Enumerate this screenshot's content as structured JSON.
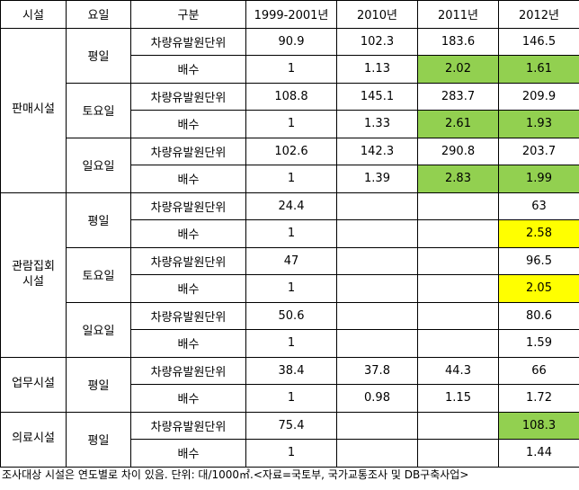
{
  "headers": [
    "시설",
    "요일",
    "구분",
    "1999-2001년",
    "2010년",
    "2011년",
    "2012년"
  ],
  "labels": {
    "unit": "차량유발원단위",
    "ratio": "배수"
  },
  "facilities": {
    "retail": "판매시설",
    "tourism_line1": "관람집회",
    "tourism_line2": "시설",
    "office": "업무시설",
    "medical": "의료시설"
  },
  "days": {
    "weekday": "평일",
    "saturday": "토요일",
    "sunday": "일요일"
  },
  "rows": {
    "retail_weekday_unit": [
      "90.9",
      "102.3",
      "183.6",
      "146.5"
    ],
    "retail_weekday_ratio": [
      "1",
      "1.13",
      "2.02",
      "1.61"
    ],
    "retail_sat_unit": [
      "108.8",
      "145.1",
      "283.7",
      "209.9"
    ],
    "retail_sat_ratio": [
      "1",
      "1.33",
      "2.61",
      "1.93"
    ],
    "retail_sun_unit": [
      "102.6",
      "142.3",
      "290.8",
      "203.7"
    ],
    "retail_sun_ratio": [
      "1",
      "1.39",
      "2.83",
      "1.99"
    ],
    "tour_weekday_unit": [
      "24.4",
      "",
      "",
      "63"
    ],
    "tour_weekday_ratio": [
      "1",
      "",
      "",
      "2.58"
    ],
    "tour_sat_unit": [
      "47",
      "",
      "",
      "96.5"
    ],
    "tour_sat_ratio": [
      "1",
      "",
      "",
      "2.05"
    ],
    "tour_sun_unit": [
      "50.6",
      "",
      "",
      "80.6"
    ],
    "tour_sun_ratio": [
      "1",
      "",
      "",
      "1.59"
    ],
    "office_unit": [
      "38.4",
      "37.8",
      "44.3",
      "66"
    ],
    "office_ratio": [
      "1",
      "0.98",
      "1.15",
      "1.72"
    ],
    "medical_unit": [
      "75.4",
      "",
      "",
      "108.3"
    ],
    "medical_ratio": [
      "1",
      "",
      "",
      "1.44"
    ]
  },
  "highlight_colors": {
    "green": "#92d050",
    "yellow": "#ffff00"
  },
  "note": "조사대상 시설은 연도별로 차이 있음. 단위: 대/1000㎡.<자료=국토부, 국가교통조사 및 DB구축사업>"
}
